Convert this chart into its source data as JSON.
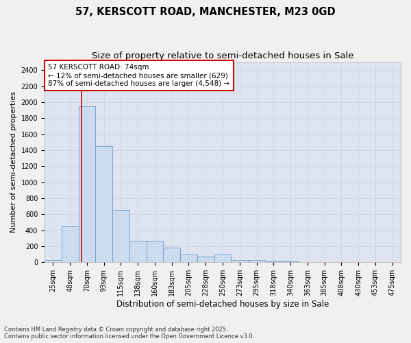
{
  "title": "57, KERSCOTT ROAD, MANCHESTER, M23 0GD",
  "subtitle": "Size of property relative to semi-detached houses in Sale",
  "xlabel": "Distribution of semi-detached houses by size in Sale",
  "ylabel": "Number of semi-detached properties",
  "categories": [
    "25sqm",
    "48sqm",
    "70sqm",
    "93sqm",
    "115sqm",
    "138sqm",
    "160sqm",
    "183sqm",
    "205sqm",
    "228sqm",
    "250sqm",
    "273sqm",
    "295sqm",
    "318sqm",
    "340sqm",
    "363sqm",
    "385sqm",
    "408sqm",
    "430sqm",
    "453sqm",
    "475sqm"
  ],
  "bar_heights": [
    25,
    450,
    1950,
    1450,
    650,
    270,
    270,
    180,
    95,
    75,
    100,
    30,
    30,
    8,
    8,
    0,
    0,
    0,
    0,
    0,
    0
  ],
  "bar_color": "#ccdcee",
  "bar_edge_color": "#6a9cc8",
  "red_line_x": 1.68,
  "annotation_title": "57 KERSCOTT ROAD: 74sqm",
  "annotation_line1": "← 12% of semi-detached houses are smaller (629)",
  "annotation_line2": "87% of semi-detached houses are larger (4,548) →",
  "annotation_box_facecolor": "#ffffff",
  "annotation_box_edgecolor": "#cc0000",
  "grid_color": "#ccd5e5",
  "background_color": "#dde4f0",
  "fig_facecolor": "#f0f0f0",
  "ylim": [
    0,
    2500
  ],
  "yticks": [
    0,
    200,
    400,
    600,
    800,
    1000,
    1200,
    1400,
    1600,
    1800,
    2000,
    2200,
    2400
  ],
  "footnote1": "Contains HM Land Registry data © Crown copyright and database right 2025.",
  "footnote2": "Contains public sector information licensed under the Open Government Licence v3.0.",
  "title_fontsize": 10.5,
  "subtitle_fontsize": 9.5,
  "ylabel_fontsize": 8,
  "xlabel_fontsize": 8.5,
  "tick_fontsize": 7,
  "annotation_fontsize": 7.5,
  "footnote_fontsize": 6
}
